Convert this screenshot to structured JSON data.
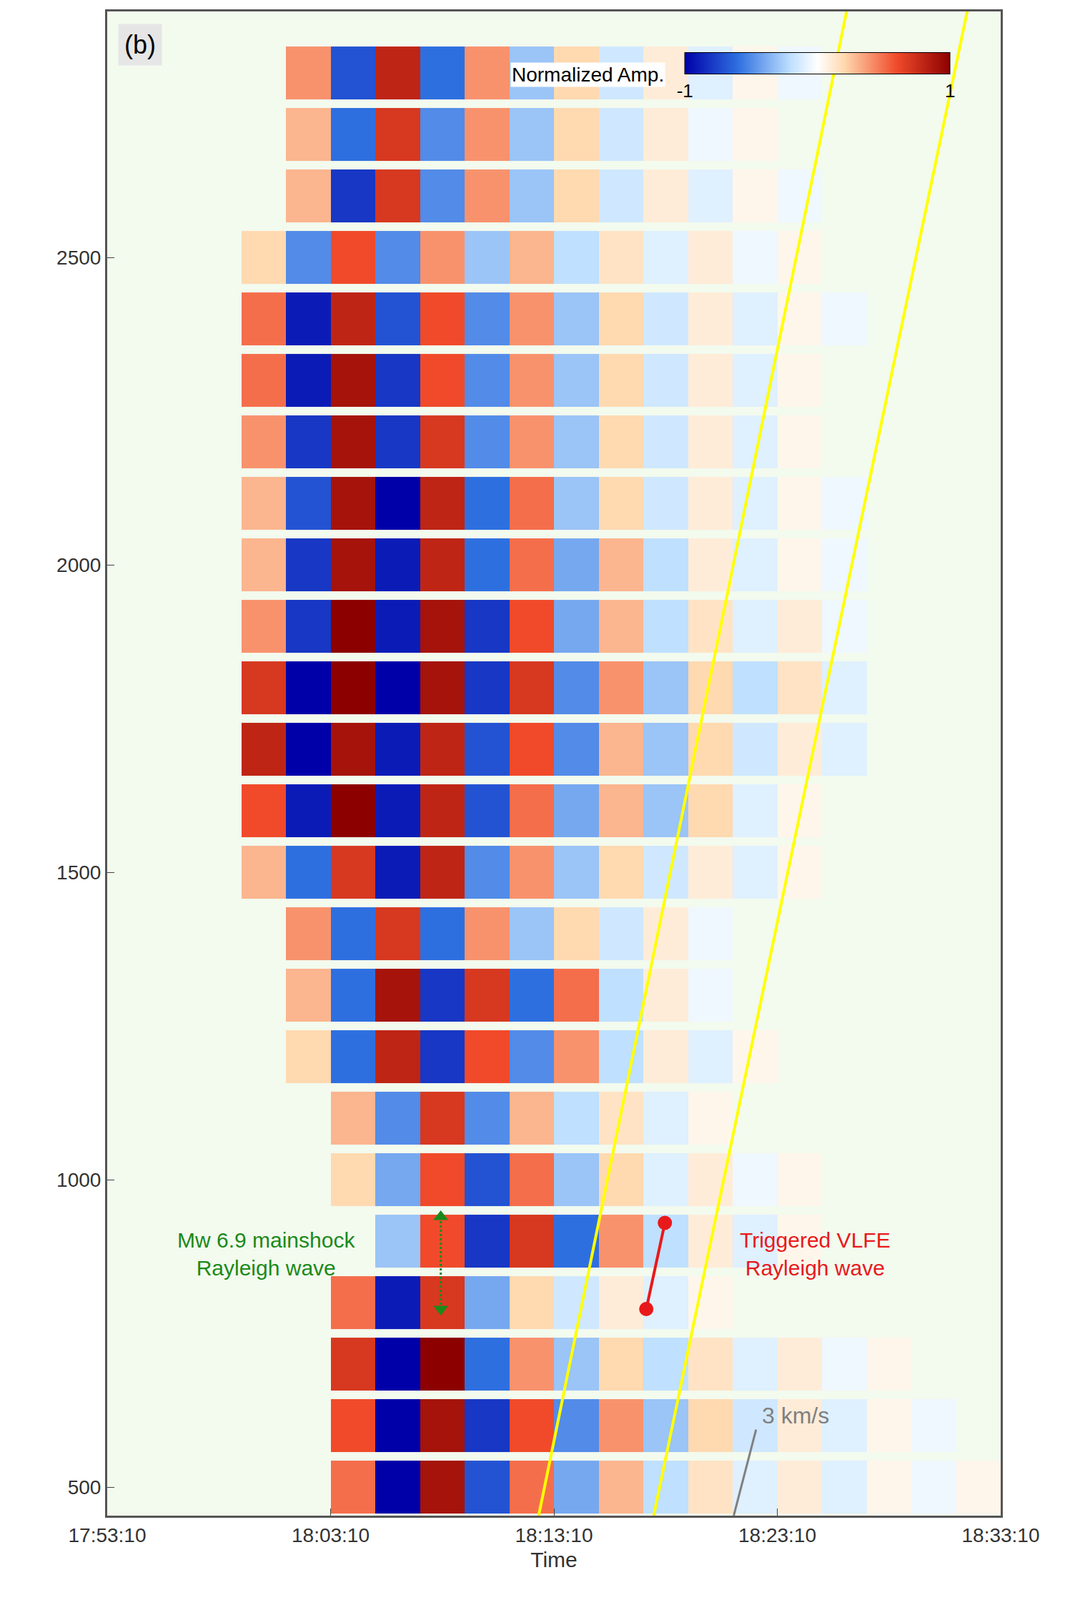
{
  "chart_data": {
    "type": "heatmap",
    "panel_label": "(b)",
    "xlabel": "Time",
    "xlim": [
      "17:53:10",
      "18:33:10"
    ],
    "xticks": [
      "17:53:10",
      "18:03:10",
      "18:13:10",
      "18:23:10",
      "18:33:10"
    ],
    "ylim": [
      454,
      2900
    ],
    "yticks": [
      500,
      1000,
      1500,
      2000,
      2500
    ],
    "x": [
      "17:54:10",
      "17:56:10",
      "17:58:10",
      "18:00:10",
      "18:02:10",
      "18:04:10",
      "18:06:10",
      "18:08:10",
      "18:10:10",
      "18:12:10",
      "18:14:10",
      "18:16:10",
      "18:18:10",
      "18:20:10",
      "18:22:10",
      "18:24:10",
      "18:26:10",
      "18:28:10",
      "18:30:10",
      "18:32:10"
    ],
    "y": [
      500,
      600,
      700,
      800,
      900,
      1000,
      1100,
      1200,
      1300,
      1400,
      1500,
      1600,
      1700,
      1800,
      1900,
      2000,
      2100,
      2200,
      2300,
      2400,
      2500,
      2600,
      2700,
      2800
    ],
    "z": [
      [
        null,
        null,
        null,
        null,
        null,
        0.5,
        -1,
        0.9,
        -0.7,
        0.5,
        -0.4,
        0.3,
        -0.2,
        0.15,
        -0.1,
        0.1,
        -0.1,
        0.05,
        -0.05,
        0.05
      ],
      [
        null,
        null,
        null,
        null,
        null,
        0.6,
        -1,
        0.9,
        -0.8,
        0.6,
        -0.5,
        0.4,
        -0.3,
        0.2,
        -0.15,
        0.1,
        -0.1,
        0.05,
        -0.05,
        null
      ],
      [
        null,
        null,
        null,
        null,
        null,
        0.7,
        -1,
        1,
        -0.6,
        0.4,
        -0.3,
        0.2,
        -0.2,
        0.15,
        -0.1,
        0.1,
        -0.05,
        0.05,
        null,
        null
      ],
      [
        null,
        null,
        null,
        null,
        null,
        0.5,
        -0.9,
        0.7,
        -0.4,
        0.2,
        -0.15,
        0.1,
        -0.1,
        0.05,
        null,
        null,
        null,
        null,
        null,
        null
      ],
      [
        null,
        null,
        null,
        null,
        null,
        null,
        -0.3,
        0.6,
        -0.8,
        0.7,
        -0.6,
        0.4,
        -0.2,
        0.1,
        -0.1,
        0.05,
        null,
        null,
        null,
        null
      ],
      [
        null,
        null,
        null,
        null,
        null,
        0.2,
        -0.4,
        0.6,
        -0.7,
        0.5,
        -0.3,
        0.2,
        -0.1,
        0.1,
        -0.05,
        0.05,
        null,
        null,
        null,
        null
      ],
      [
        null,
        null,
        null,
        null,
        null,
        0.3,
        -0.5,
        0.7,
        -0.5,
        0.3,
        -0.2,
        0.15,
        -0.1,
        0.05,
        null,
        null,
        null,
        null,
        null,
        null
      ],
      [
        null,
        null,
        null,
        null,
        0.2,
        -0.6,
        0.8,
        -0.8,
        0.6,
        -0.5,
        0.4,
        -0.2,
        0.1,
        -0.1,
        0.05,
        null,
        null,
        null,
        null,
        null
      ],
      [
        null,
        null,
        null,
        null,
        0.3,
        -0.6,
        0.9,
        -0.8,
        0.7,
        -0.6,
        0.5,
        -0.2,
        0.1,
        -0.05,
        null,
        null,
        null,
        null,
        null,
        null
      ],
      [
        null,
        null,
        null,
        null,
        0.4,
        -0.6,
        0.7,
        -0.6,
        0.4,
        -0.3,
        0.2,
        -0.15,
        0.1,
        -0.05,
        null,
        null,
        null,
        null,
        null,
        null
      ],
      [
        null,
        null,
        null,
        0.3,
        -0.6,
        0.7,
        -0.9,
        0.8,
        -0.5,
        0.4,
        -0.3,
        0.2,
        -0.15,
        0.1,
        -0.1,
        0.05,
        null,
        null,
        null,
        null
      ],
      [
        null,
        null,
        null,
        0.6,
        -0.9,
        1,
        -0.9,
        0.8,
        -0.7,
        0.5,
        -0.4,
        0.3,
        -0.3,
        0.2,
        -0.1,
        0.05,
        null,
        null,
        null,
        null
      ],
      [
        null,
        null,
        null,
        0.8,
        -1,
        0.9,
        -0.9,
        0.8,
        -0.7,
        0.6,
        -0.5,
        0.3,
        -0.3,
        0.2,
        -0.15,
        0.1,
        -0.1,
        null,
        null,
        null
      ],
      [
        null,
        null,
        null,
        0.7,
        -1,
        1,
        -1,
        0.9,
        -0.8,
        0.7,
        -0.5,
        0.4,
        -0.3,
        0.2,
        -0.2,
        0.15,
        -0.1,
        null,
        null,
        null
      ],
      [
        null,
        null,
        null,
        0.4,
        -0.8,
        1,
        -0.9,
        0.9,
        -0.8,
        0.6,
        -0.4,
        0.3,
        -0.2,
        0.15,
        -0.1,
        0.1,
        -0.05,
        null,
        null,
        null
      ],
      [
        null,
        null,
        null,
        0.3,
        -0.8,
        0.9,
        -0.9,
        0.8,
        -0.6,
        0.5,
        -0.4,
        0.3,
        -0.2,
        0.1,
        -0.1,
        0.05,
        -0.05,
        null,
        null,
        null
      ],
      [
        null,
        null,
        null,
        0.3,
        -0.7,
        0.9,
        -1,
        0.8,
        -0.6,
        0.5,
        -0.3,
        0.2,
        -0.15,
        0.1,
        -0.1,
        0.05,
        -0.05,
        null,
        null,
        null
      ],
      [
        null,
        null,
        null,
        0.4,
        -0.8,
        0.9,
        -0.8,
        0.7,
        -0.5,
        0.4,
        -0.3,
        0.2,
        -0.15,
        0.1,
        -0.1,
        0.05,
        null,
        null,
        null,
        null
      ],
      [
        null,
        null,
        null,
        0.5,
        -0.9,
        0.9,
        -0.8,
        0.6,
        -0.5,
        0.4,
        -0.3,
        0.2,
        -0.15,
        0.1,
        -0.1,
        0.05,
        null,
        null,
        null,
        null
      ],
      [
        null,
        null,
        null,
        0.5,
        -0.9,
        0.8,
        -0.7,
        0.6,
        -0.5,
        0.4,
        -0.3,
        0.2,
        -0.15,
        0.1,
        -0.1,
        0.05,
        -0.05,
        null,
        null,
        null
      ],
      [
        null,
        null,
        null,
        0.2,
        -0.5,
        0.6,
        -0.5,
        0.4,
        -0.3,
        0.3,
        -0.2,
        0.15,
        -0.1,
        0.1,
        -0.05,
        0.05,
        null,
        null,
        null,
        null
      ],
      [
        null,
        null,
        null,
        null,
        0.3,
        -0.8,
        0.7,
        -0.5,
        0.4,
        -0.3,
        0.2,
        -0.15,
        0.1,
        -0.1,
        0.05,
        -0.05,
        null,
        null,
        null,
        null
      ],
      [
        null,
        null,
        null,
        null,
        0.3,
        -0.6,
        0.7,
        -0.5,
        0.4,
        -0.3,
        0.2,
        -0.15,
        0.1,
        -0.05,
        0.05,
        null,
        null,
        null,
        null,
        null
      ],
      [
        null,
        null,
        null,
        null,
        0.4,
        -0.7,
        0.8,
        -0.6,
        0.4,
        -0.3,
        0.2,
        -0.15,
        0.1,
        -0.1,
        0.05,
        -0.05,
        null,
        null,
        null,
        null
      ]
    ],
    "colorbar": {
      "title": "Normalized Amp.",
      "range": [
        -1,
        1
      ],
      "ticks": [
        -1,
        1
      ]
    },
    "reference_lines": [
      {
        "x": [
          "18:12:29",
          "18:26:16"
        ],
        "y": [
          454,
          2900
        ],
        "color": "#ffff00"
      },
      {
        "x": [
          "18:17:38",
          "18:31:40"
        ],
        "y": [
          454,
          2900
        ],
        "color": "#ffff00"
      }
    ],
    "scale_bar": {
      "label": "3 km/s",
      "x": [
        "18:21:13",
        "18:22:13"
      ],
      "y": [
        454,
        594
      ],
      "color": "#808080"
    },
    "mainshock_arrow": {
      "x": [
        "18:08:06",
        "18:08:06"
      ],
      "y": [
        940,
        790
      ],
      "color": "#1a8a1a",
      "line_style": "dot"
    },
    "vlfe_segment": {
      "x": [
        "18:17:18",
        "18:18:08"
      ],
      "y": [
        790,
        930
      ],
      "color": "#e8191b",
      "marker": "circle"
    },
    "annotations": [
      {
        "lines": [
          "Mw 6.9 mainshock",
          "Rayleigh wave"
        ],
        "x": "18:00:17",
        "y": 880,
        "color": "#1a8a1a"
      },
      {
        "lines": [
          "Triggered VLFE",
          "Rayleigh wave"
        ],
        "x": "18:24:52",
        "y": 880,
        "color": "#e8191b"
      }
    ],
    "grid": false
  }
}
